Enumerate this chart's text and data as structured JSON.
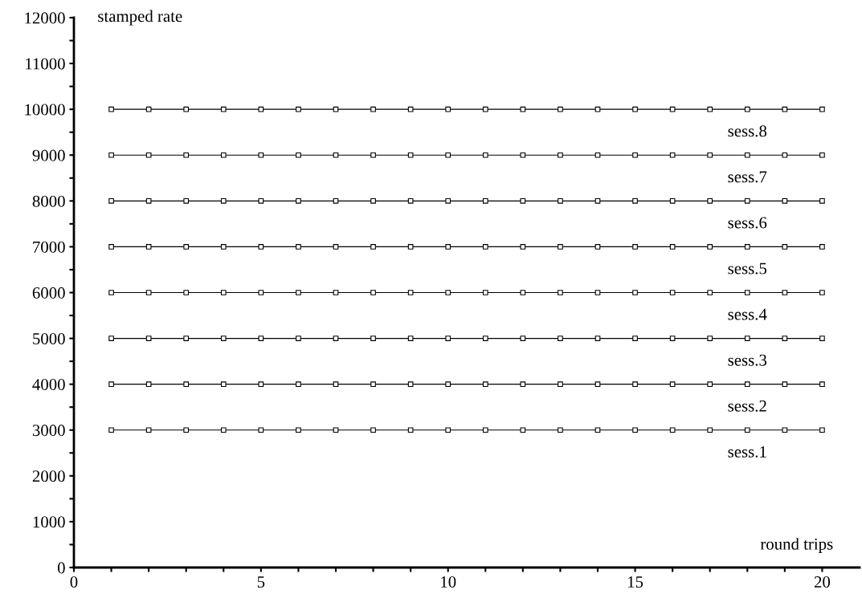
{
  "chart_data": {
    "type": "line",
    "xlabel": "round trips",
    "ylabel": "stamped rate",
    "x": [
      1,
      2,
      3,
      4,
      5,
      6,
      7,
      8,
      9,
      10,
      11,
      12,
      13,
      14,
      15,
      16,
      17,
      18,
      19,
      20
    ],
    "series": [
      {
        "name": "sess.1",
        "color": "#000000",
        "values": [
          3000,
          3000,
          3000,
          3000,
          3000,
          3000,
          3000,
          3000,
          3000,
          3000,
          3000,
          3000,
          3000,
          3000,
          3000,
          3000,
          3000,
          3000,
          3000,
          3000
        ]
      },
      {
        "name": "sess.2",
        "color": "#000000",
        "values": [
          4000,
          4000,
          4000,
          4000,
          4000,
          4000,
          4000,
          4000,
          4000,
          4000,
          4000,
          4000,
          4000,
          4000,
          4000,
          4000,
          4000,
          4000,
          4000,
          4000
        ]
      },
      {
        "name": "sess.3",
        "color": "#000000",
        "values": [
          5000,
          5000,
          5000,
          5000,
          5000,
          5000,
          5000,
          5000,
          5000,
          5000,
          5000,
          5000,
          5000,
          5000,
          5000,
          5000,
          5000,
          5000,
          5000,
          5000
        ]
      },
      {
        "name": "sess.4",
        "color": "#000000",
        "values": [
          6000,
          6000,
          6000,
          6000,
          6000,
          6000,
          6000,
          6000,
          6000,
          6000,
          6000,
          6000,
          6000,
          6000,
          6000,
          6000,
          6000,
          6000,
          6000,
          6000
        ]
      },
      {
        "name": "sess.5",
        "color": "#000000",
        "values": [
          7000,
          7000,
          7000,
          7000,
          7000,
          7000,
          7000,
          7000,
          7000,
          7000,
          7000,
          7000,
          7000,
          7000,
          7000,
          7000,
          7000,
          7000,
          7000,
          7000
        ]
      },
      {
        "name": "sess.6",
        "color": "#000000",
        "values": [
          8000,
          8000,
          8000,
          8000,
          8000,
          8000,
          8000,
          8000,
          8000,
          8000,
          8000,
          8000,
          8000,
          8000,
          8000,
          8000,
          8000,
          8000,
          8000,
          8000
        ]
      },
      {
        "name": "sess.7",
        "color": "#000000",
        "values": [
          9000,
          9000,
          9000,
          9000,
          9000,
          9000,
          9000,
          9000,
          9000,
          9000,
          9000,
          9000,
          9000,
          9000,
          9000,
          9000,
          9000,
          9000,
          9000,
          9000
        ]
      },
      {
        "name": "sess.8",
        "color": "#000000",
        "values": [
          10000,
          10000,
          10000,
          10000,
          10000,
          10000,
          10000,
          10000,
          10000,
          10000,
          10000,
          10000,
          10000,
          10000,
          10000,
          10000,
          10000,
          10000,
          10000,
          10000
        ]
      }
    ],
    "xlim": [
      0,
      21
    ],
    "xticks": [
      0,
      {
        "value": 1,
        "label": null
      },
      {
        "value": 2,
        "label": null
      },
      {
        "value": 3,
        "label": null
      },
      {
        "value": 4,
        "label": null
      },
      5,
      {
        "value": 6,
        "label": null
      },
      {
        "value": 7,
        "label": null
      },
      {
        "value": 8,
        "label": null
      },
      {
        "value": 9,
        "label": null
      },
      10,
      {
        "value": 11,
        "label": null
      },
      {
        "value": 12,
        "label": null
      },
      {
        "value": 13,
        "label": null
      },
      {
        "value": 14,
        "label": null
      },
      15,
      {
        "value": 16,
        "label": null
      },
      {
        "value": 17,
        "label": null
      },
      {
        "value": 18,
        "label": null
      },
      {
        "value": 19,
        "label": null
      },
      20
    ],
    "ylim": [
      0,
      12000
    ],
    "yticks": [
      0,
      {
        "value": 500,
        "label": null
      },
      1000,
      {
        "value": 1500,
        "label": null
      },
      2000,
      {
        "value": 2500,
        "label": null
      },
      3000,
      {
        "value": 3500,
        "label": null
      },
      4000,
      {
        "value": 4500,
        "label": null
      },
      5000,
      {
        "value": 5500,
        "label": null
      },
      6000,
      {
        "value": 6500,
        "label": null
      },
      7000,
      {
        "value": 7500,
        "label": null
      },
      8000,
      {
        "value": 8500,
        "label": null
      },
      9000,
      {
        "value": 9500,
        "label": null
      },
      10000,
      {
        "value": 10500,
        "label": null
      },
      11000,
      {
        "value": 11500,
        "label": null
      },
      12000
    ],
    "marker": "square",
    "line_style": "solid",
    "grid": false,
    "legend": false
  }
}
